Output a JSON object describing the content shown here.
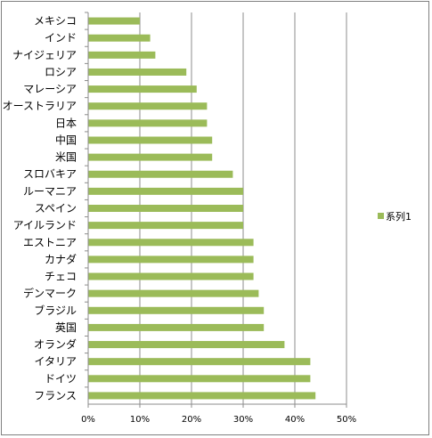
{
  "chart_data": {
    "type": "bar",
    "orientation": "horizontal",
    "categories": [
      "メキシコ",
      "インド",
      "ナイジェリア",
      "ロシア",
      "マレーシア",
      "オーストラリア",
      "日本",
      "中国",
      "米国",
      "スロバキア",
      "ルーマニア",
      "スペイン",
      "アイルランド",
      "エストニア",
      "カナダ",
      "チェコ",
      "デンマーク",
      "ブラジル",
      "英国",
      "オランダ",
      "イタリア",
      "ドイツ",
      "フランス"
    ],
    "series": [
      {
        "name": "系列1",
        "values": [
          0.1,
          0.12,
          0.13,
          0.19,
          0.21,
          0.23,
          0.23,
          0.24,
          0.24,
          0.28,
          0.3,
          0.3,
          0.3,
          0.32,
          0.32,
          0.32,
          0.33,
          0.34,
          0.34,
          0.38,
          0.43,
          0.43,
          0.44
        ]
      }
    ],
    "xlim": [
      0,
      0.5
    ],
    "xticks": [
      "0%",
      "10%",
      "20%",
      "30%",
      "40%",
      "50%"
    ],
    "grid": true,
    "legend_position": "right",
    "bar_color": "#9bbb59"
  }
}
